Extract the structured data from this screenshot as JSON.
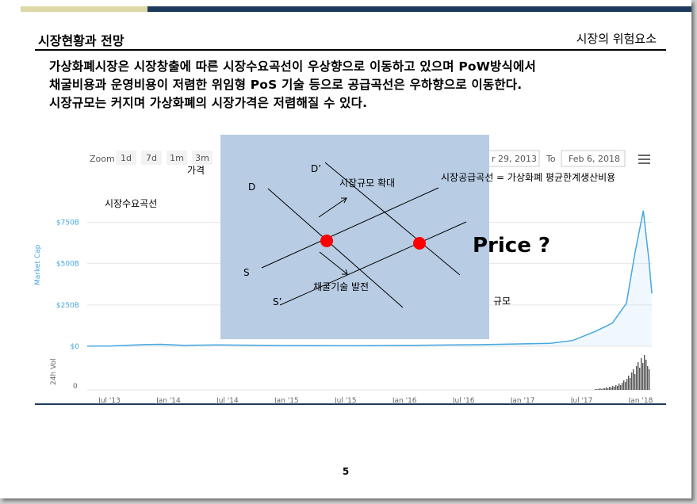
{
  "slide": {
    "title": "시장현황과 전망",
    "section": "시장의 위험요소",
    "body": "가상화폐시장은 시장창출에 따른 시장수요곡선이 우상향으로 이동하고 있으며 PoW방식에서\n채굴비용과 운영비용이 저렴한 위임형 PoS 기술 등으로 공급곡선은 우하향으로 이동한다.\n시장규모는 커지며 가상화폐의 시장가격은 저렴해질 수 있다.",
    "page_number": "5"
  },
  "chart_toolbar": {
    "zoom_label": "Zoom",
    "zoom_buttons": [
      "1d",
      "7d",
      "1m",
      "3m"
    ],
    "date_from": "r 29, 2013",
    "to_label": "To",
    "date_to": "Feb 6, 2018"
  },
  "chart_data": {
    "type": "area",
    "ylabel": "Market Cap",
    "ylabel_vol": "24h Vol",
    "yticks": [
      "$750B",
      "$500B",
      "$250B",
      "$0"
    ],
    "vol_ytick": "0",
    "xticks": [
      "Jul '13",
      "Jan '14",
      "Jul '14",
      "Jan '15",
      "Jul '15",
      "Jan '16",
      "Jul '16",
      "Jan '17",
      "Jul '17",
      "Jan '18"
    ],
    "ylim": [
      0,
      800
    ],
    "x": [
      "Jul '13",
      "Oct '13",
      "Dec '13",
      "Jan '14",
      "Apr '14",
      "Jul '14",
      "Jan '15",
      "Jul '15",
      "Jan '16",
      "Jul '16",
      "Jan '17",
      "Apr '17",
      "Jul '17",
      "Sep '17",
      "Nov '17",
      "Dec '17",
      "Jan '18 early",
      "Jan '18",
      "Feb '18"
    ],
    "series": [
      {
        "values": [
          1,
          2,
          10,
          12,
          6,
          8,
          5,
          4,
          6,
          10,
          18,
          35,
          90,
          140,
          260,
          560,
          820,
          520,
          320
        ]
      }
    ],
    "line_color": "#46a7e0"
  },
  "overlay": {
    "label_price_axis": "가격",
    "label_D": "D",
    "label_D2": "D’",
    "label_S": "S",
    "label_S2": "S’",
    "label_expand": "시장규모 확대",
    "label_tech": "채굴기술 발전",
    "label_demand": "시장수요곡선",
    "label_supply": "시장공급곡선 = 가상화폐 평균한계생산비용",
    "label_price": "Price ?",
    "label_size": "규모",
    "panel_color": "#b8cce4",
    "point_color": "#ff0000"
  }
}
